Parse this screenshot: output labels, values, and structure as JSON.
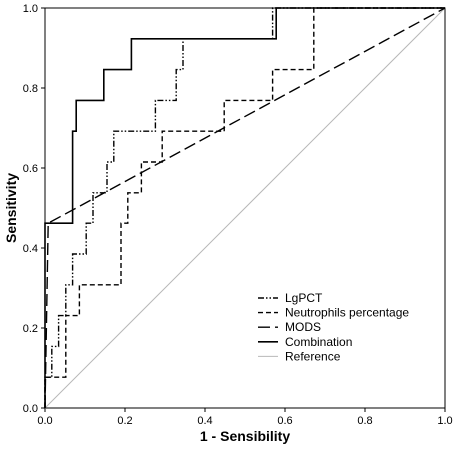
{
  "chart_data": {
    "type": "line",
    "title": "",
    "xlabel": "1 - Sensibility",
    "ylabel": "Sensitivity",
    "xlim": [
      0,
      1
    ],
    "ylim": [
      0,
      1
    ],
    "x_ticks": [
      "0.0",
      "0.2",
      "0.4",
      "0.6",
      "0.8",
      "1.0"
    ],
    "y_ticks": [
      "0.0",
      "0.2",
      "0.4",
      "0.6",
      "0.8",
      "1.0"
    ],
    "grid": false,
    "legend_position": "bottom-right",
    "series": [
      {
        "name": "LgPCT",
        "line_style": "dash-dot-dot",
        "color": "#000000",
        "points": [
          [
            0,
            0
          ],
          [
            0,
            0.077
          ],
          [
            0.017,
            0.077
          ],
          [
            0.017,
            0.154
          ],
          [
            0.034,
            0.154
          ],
          [
            0.034,
            0.231
          ],
          [
            0.052,
            0.231
          ],
          [
            0.052,
            0.308
          ],
          [
            0.069,
            0.308
          ],
          [
            0.069,
            0.385
          ],
          [
            0.103,
            0.385
          ],
          [
            0.103,
            0.462
          ],
          [
            0.12,
            0.462
          ],
          [
            0.12,
            0.538
          ],
          [
            0.155,
            0.538
          ],
          [
            0.155,
            0.615
          ],
          [
            0.172,
            0.615
          ],
          [
            0.172,
            0.692
          ],
          [
            0.276,
            0.692
          ],
          [
            0.276,
            0.769
          ],
          [
            0.328,
            0.769
          ],
          [
            0.328,
            0.846
          ],
          [
            0.345,
            0.846
          ],
          [
            0.345,
            0.923
          ],
          [
            0.569,
            0.923
          ],
          [
            0.569,
            1.0
          ],
          [
            1.0,
            1.0
          ]
        ]
      },
      {
        "name": "Neutrophils percentage",
        "line_style": "dash",
        "color": "#000000",
        "points": [
          [
            0,
            0
          ],
          [
            0,
            0.077
          ],
          [
            0.052,
            0.077
          ],
          [
            0.052,
            0.231
          ],
          [
            0.086,
            0.231
          ],
          [
            0.086,
            0.308
          ],
          [
            0.19,
            0.308
          ],
          [
            0.19,
            0.462
          ],
          [
            0.207,
            0.462
          ],
          [
            0.207,
            0.538
          ],
          [
            0.241,
            0.538
          ],
          [
            0.241,
            0.615
          ],
          [
            0.293,
            0.615
          ],
          [
            0.293,
            0.692
          ],
          [
            0.448,
            0.692
          ],
          [
            0.448,
            0.769
          ],
          [
            0.569,
            0.769
          ],
          [
            0.569,
            0.846
          ],
          [
            0.672,
            0.846
          ],
          [
            0.672,
            1.0
          ],
          [
            1.0,
            1.0
          ]
        ]
      },
      {
        "name": "MODS",
        "line_style": "long-dash",
        "color": "#000000",
        "points": [
          [
            0,
            0
          ],
          [
            0.008,
            0.462
          ],
          [
            1.0,
            1.0
          ]
        ]
      },
      {
        "name": "Combination",
        "line_style": "solid",
        "color": "#000000",
        "points": [
          [
            0,
            0
          ],
          [
            0,
            0.462
          ],
          [
            0.069,
            0.462
          ],
          [
            0.069,
            0.692
          ],
          [
            0.078,
            0.692
          ],
          [
            0.078,
            0.769
          ],
          [
            0.147,
            0.769
          ],
          [
            0.147,
            0.846
          ],
          [
            0.216,
            0.846
          ],
          [
            0.216,
            0.923
          ],
          [
            0.578,
            0.923
          ],
          [
            0.578,
            1.0
          ],
          [
            1.0,
            1.0
          ]
        ]
      },
      {
        "name": "Reference",
        "line_style": "solid-thin",
        "color": "#b8b8b8",
        "points": [
          [
            0,
            0
          ],
          [
            1,
            1
          ]
        ]
      }
    ]
  }
}
